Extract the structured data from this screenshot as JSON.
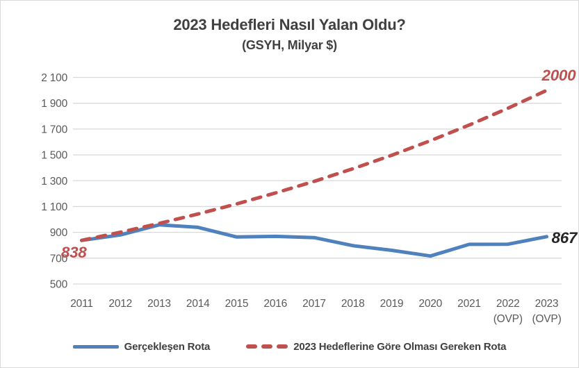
{
  "chart_data": {
    "type": "line",
    "title": "2023 Hedefleri Nasıl Yalan Oldu?",
    "subtitle": "(GSYH, Milyar $)",
    "categories": [
      "2011",
      "2012",
      "2013",
      "2014",
      "2015",
      "2016",
      "2017",
      "2018",
      "2019",
      "2020",
      "2021",
      "2022",
      "2023"
    ],
    "x_sublabels": [
      "",
      "",
      "",
      "",
      "",
      "",
      "",
      "",
      "",
      "",
      "",
      "(OVP)",
      "(OVP)"
    ],
    "series": [
      {
        "name": "Gerçekleşen Rota",
        "style": "solid",
        "color": "#4F81BD",
        "values": [
          838,
          880,
          958,
          939,
          864,
          869,
          859,
          797,
          761,
          717,
          807,
          808,
          867
        ]
      },
      {
        "name": "2023 Hedeflerine Göre Olması Gereken Rota",
        "style": "dashed",
        "color": "#C0504D",
        "values": [
          838,
          901,
          969,
          1042,
          1120,
          1205,
          1295,
          1393,
          1497,
          1610,
          1731,
          1861,
          2000
        ]
      }
    ],
    "ylim": [
      500,
      2100
    ],
    "ytick_step": 200,
    "ytick_labels": [
      "500",
      "700",
      "900",
      "1 100",
      "1 300",
      "1 500",
      "1 700",
      "1 900",
      "2 100"
    ],
    "grid": true,
    "legend_position": "bottom",
    "annotations": [
      {
        "role": "start-value",
        "text": "838",
        "series": 1,
        "index": 0,
        "color": "#C0504D"
      },
      {
        "role": "target-end-value",
        "text": "2000",
        "series": 1,
        "index": 12,
        "color": "#C0504D"
      },
      {
        "role": "actual-end-value",
        "text": "867",
        "series": 0,
        "index": 12,
        "color": "#262626"
      }
    ]
  },
  "colors": {
    "actual": "#4F81BD",
    "target": "#C0504D",
    "title": "#404040",
    "axis": "#595959",
    "grid": "#D9D9D9",
    "annotation_dark": "#262626",
    "border": "#D9D9D9"
  }
}
